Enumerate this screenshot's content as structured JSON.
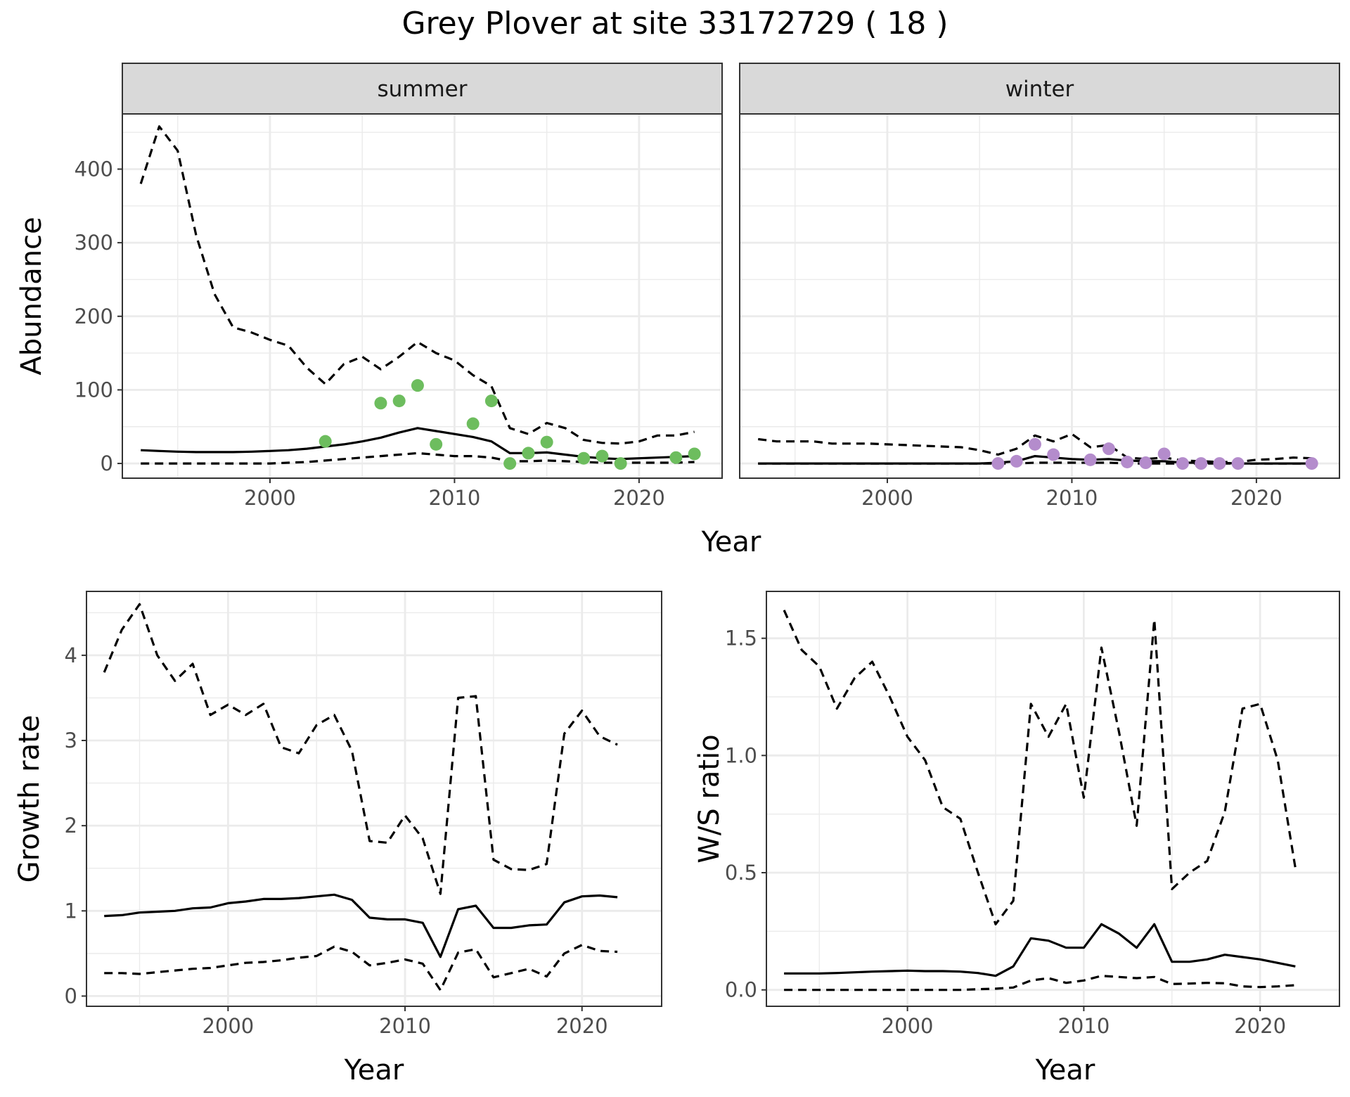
{
  "title": "Grey Plover at site 33172729 ( 18 )",
  "colors": {
    "summer_points": "#6dbd5e",
    "winter_points": "#b48ccc",
    "line": "#000000",
    "grid": "#ebebeb",
    "strip_bg": "#d9d9d9"
  },
  "chart_data": [
    {
      "id": "abundance",
      "type": "line",
      "ylabel": "Abundance",
      "xlabel": "Year",
      "xlim": [
        1992,
        2024.5
      ],
      "ylim": [
        -20,
        475
      ],
      "xticks": [
        2000,
        2010,
        2020
      ],
      "yticks": [
        0,
        100,
        200,
        300,
        400
      ],
      "grid": true,
      "facets": [
        {
          "strip": "summer",
          "x": [
            1993,
            1994,
            1995,
            1996,
            1997,
            1998,
            1999,
            2000,
            2001,
            2002,
            2003,
            2004,
            2005,
            2006,
            2007,
            2008,
            2009,
            2010,
            2011,
            2012,
            2013,
            2014,
            2015,
            2016,
            2017,
            2018,
            2019,
            2020,
            2021,
            2022,
            2023
          ],
          "series": [
            {
              "style": "solid",
              "values": [
                18,
                17,
                16,
                15.5,
                15.5,
                15.5,
                16,
                17,
                18,
                20,
                23,
                26,
                30,
                35,
                42,
                48,
                44,
                40,
                36,
                30,
                14,
                14,
                15,
                12,
                9,
                7,
                6,
                7,
                8,
                9,
                10
              ]
            },
            {
              "style": "dashed",
              "values": [
                380,
                458,
                425,
                310,
                230,
                185,
                178,
                168,
                160,
                130,
                108,
                135,
                145,
                128,
                145,
                165,
                150,
                140,
                120,
                105,
                48,
                40,
                55,
                48,
                32,
                28,
                27,
                30,
                38,
                38,
                43
              ]
            },
            {
              "style": "dashed",
              "values": [
                0,
                0,
                0,
                0,
                0,
                0,
                0,
                0,
                1,
                2,
                4,
                6,
                8,
                10,
                12,
                14,
                12,
                10,
                10,
                8,
                3,
                3,
                4,
                3,
                2,
                1,
                1,
                1,
                1,
                1,
                2
              ]
            }
          ],
          "points": {
            "x": [
              2003,
              2006,
              2007,
              2008,
              2009,
              2011,
              2012,
              2013,
              2014,
              2015,
              2017,
              2018,
              2019,
              2022,
              2023
            ],
            "y": [
              30,
              82,
              85,
              106,
              26,
              54,
              85,
              0,
              14,
              29,
              7,
              10,
              0,
              8,
              13
            ]
          }
        },
        {
          "strip": "winter",
          "x": [
            1993,
            1994,
            1995,
            1996,
            1997,
            1998,
            1999,
            2000,
            2001,
            2002,
            2003,
            2004,
            2005,
            2006,
            2007,
            2008,
            2009,
            2010,
            2011,
            2012,
            2013,
            2014,
            2015,
            2016,
            2017,
            2018,
            2019,
            2020,
            2021,
            2022,
            2023
          ],
          "series": [
            {
              "style": "solid",
              "values": [
                0,
                0,
                0,
                0,
                0,
                0,
                0,
                0,
                0,
                0,
                0,
                0,
                0,
                1,
                3,
                10,
                8,
                6,
                5,
                6,
                4,
                3,
                3,
                1,
                1,
                1,
                0,
                0,
                0,
                0,
                0
              ]
            },
            {
              "style": "dashed",
              "values": [
                33,
                30,
                30,
                30,
                27,
                27,
                27,
                26,
                25,
                24,
                23,
                22,
                18,
                12,
                20,
                38,
                30,
                40,
                22,
                25,
                8,
                6,
                8,
                4,
                3,
                2,
                2,
                5,
                6,
                8,
                7
              ]
            },
            {
              "style": "dashed",
              "values": [
                0,
                0,
                0,
                0,
                0,
                0,
                0,
                0,
                0,
                0,
                0,
                0,
                0,
                0,
                0,
                1,
                1,
                1,
                1,
                1,
                0,
                0,
                0,
                0,
                0,
                0,
                0,
                0,
                0,
                0,
                0
              ]
            }
          ],
          "points": {
            "x": [
              2006,
              2007,
              2008,
              2009,
              2011,
              2012,
              2013,
              2014,
              2015,
              2016,
              2017,
              2018,
              2019,
              2023
            ],
            "y": [
              0,
              3,
              26,
              12,
              5,
              20,
              2,
              1,
              13,
              0,
              0,
              0,
              0,
              0
            ]
          }
        }
      ]
    },
    {
      "id": "growth",
      "type": "line",
      "ylabel": "Growth rate",
      "xlabel": "Year",
      "xlim": [
        1992,
        2024.5
      ],
      "ylim": [
        -0.12,
        4.75
      ],
      "xticks": [
        2000,
        2010,
        2020
      ],
      "yticks": [
        0,
        1,
        2,
        3,
        4
      ],
      "grid": true,
      "x": [
        1993,
        1994,
        1995,
        1996,
        1997,
        1998,
        1999,
        2000,
        2001,
        2002,
        2003,
        2004,
        2005,
        2006,
        2007,
        2008,
        2009,
        2010,
        2011,
        2012,
        2013,
        2014,
        2015,
        2016,
        2017,
        2018,
        2019,
        2020,
        2021,
        2022
      ],
      "series": [
        {
          "style": "solid",
          "values": [
            0.94,
            0.95,
            0.98,
            0.99,
            1.0,
            1.03,
            1.04,
            1.09,
            1.11,
            1.14,
            1.14,
            1.15,
            1.17,
            1.19,
            1.13,
            0.92,
            0.9,
            0.9,
            0.86,
            0.46,
            1.02,
            1.06,
            0.8,
            0.8,
            0.83,
            0.84,
            1.1,
            1.17,
            1.18,
            1.16
          ]
        },
        {
          "style": "dashed",
          "values": [
            3.8,
            4.3,
            4.6,
            4.0,
            3.7,
            3.9,
            3.3,
            3.42,
            3.3,
            3.43,
            2.92,
            2.85,
            3.18,
            3.3,
            2.88,
            1.82,
            1.8,
            2.12,
            1.85,
            1.2,
            3.5,
            3.52,
            1.6,
            1.49,
            1.48,
            1.55,
            3.08,
            3.35,
            3.05,
            2.95
          ]
        },
        {
          "style": "dashed",
          "values": [
            0.27,
            0.27,
            0.26,
            0.28,
            0.3,
            0.32,
            0.33,
            0.36,
            0.39,
            0.4,
            0.42,
            0.45,
            0.47,
            0.58,
            0.52,
            0.36,
            0.39,
            0.43,
            0.38,
            0.07,
            0.51,
            0.55,
            0.22,
            0.27,
            0.32,
            0.23,
            0.5,
            0.6,
            0.53,
            0.52
          ]
        }
      ]
    },
    {
      "id": "ratio",
      "type": "line",
      "ylabel": "W/S ratio",
      "xlabel": "Year",
      "xlim": [
        1992,
        2024.5
      ],
      "ylim": [
        -0.07,
        1.7
      ],
      "xticks": [
        2000,
        2010,
        2020
      ],
      "yticks": [
        0.0,
        0.5,
        1.0,
        1.5
      ],
      "ytick_labels": [
        "0.0",
        "0.5",
        "1.0",
        "1.5"
      ],
      "grid": true,
      "x": [
        1993,
        1994,
        1995,
        1996,
        1997,
        1998,
        1999,
        2000,
        2001,
        2002,
        2003,
        2004,
        2005,
        2006,
        2007,
        2008,
        2009,
        2010,
        2011,
        2012,
        2013,
        2014,
        2015,
        2016,
        2017,
        2018,
        2019,
        2020,
        2021,
        2022
      ],
      "series": [
        {
          "style": "solid",
          "values": [
            0.07,
            0.07,
            0.07,
            0.072,
            0.075,
            0.078,
            0.08,
            0.082,
            0.08,
            0.08,
            0.078,
            0.072,
            0.06,
            0.1,
            0.22,
            0.21,
            0.18,
            0.18,
            0.28,
            0.24,
            0.18,
            0.28,
            0.12,
            0.12,
            0.13,
            0.15,
            0.14,
            0.13,
            0.115,
            0.1
          ]
        },
        {
          "style": "dashed",
          "values": [
            1.62,
            1.45,
            1.38,
            1.2,
            1.33,
            1.4,
            1.25,
            1.08,
            0.98,
            0.78,
            0.73,
            0.5,
            0.28,
            0.38,
            1.22,
            1.08,
            1.22,
            0.82,
            1.46,
            1.1,
            0.7,
            1.58,
            0.43,
            0.5,
            0.55,
            0.76,
            1.2,
            1.22,
            0.98,
            0.52
          ]
        },
        {
          "style": "dashed",
          "values": [
            0.0,
            0.0,
            0.0,
            0.0,
            0.0,
            0.0,
            0.0,
            0.0,
            0.0,
            0.0,
            0.0,
            0.003,
            0.005,
            0.01,
            0.04,
            0.05,
            0.03,
            0.04,
            0.06,
            0.055,
            0.05,
            0.055,
            0.025,
            0.027,
            0.03,
            0.028,
            0.015,
            0.012,
            0.015,
            0.02
          ]
        }
      ]
    }
  ]
}
